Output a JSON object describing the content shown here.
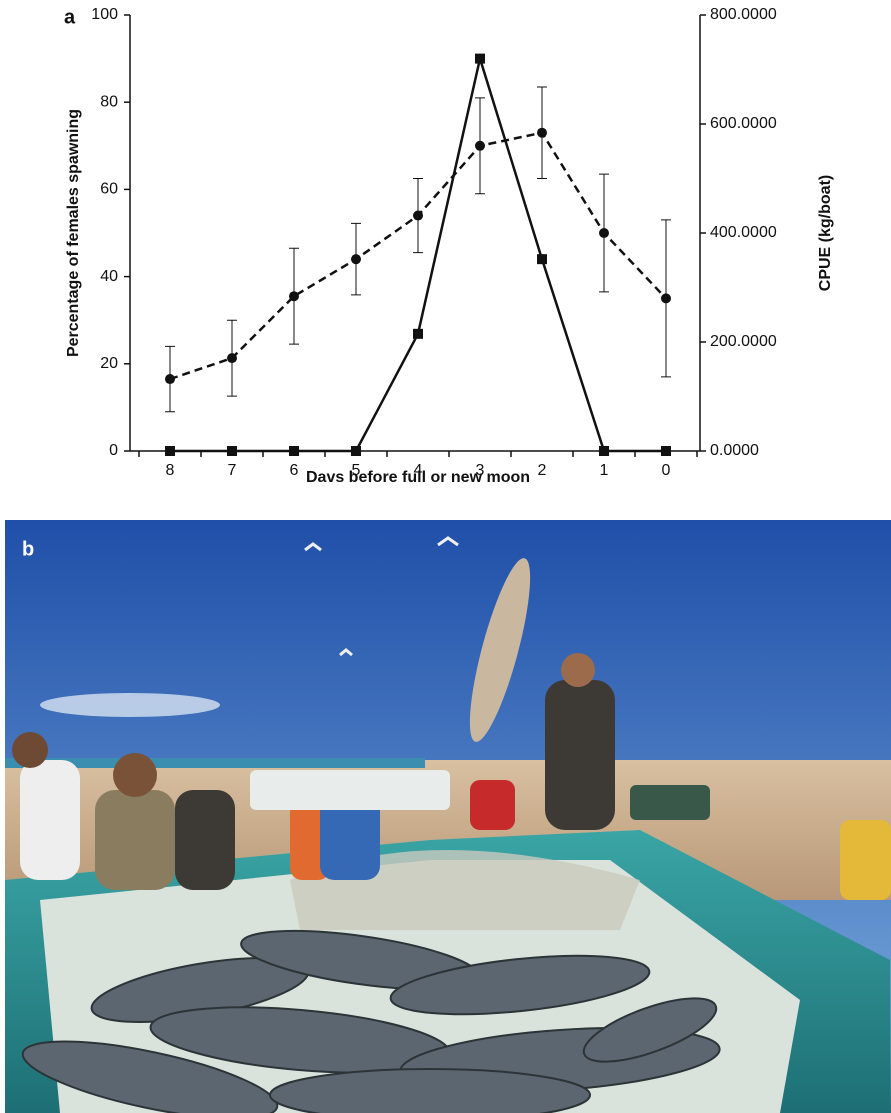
{
  "panel_a": "a",
  "panel_b": "b",
  "chart_data": {
    "type": "line",
    "x_label": "Davs before full or new moon",
    "y_label": "Percentage of females spawning",
    "y2_label": "CPUE (kg/boat)",
    "categories": [
      "8",
      "7",
      "6",
      "5",
      "4",
      "3",
      "2",
      "1",
      "0"
    ],
    "ylim": [
      0,
      100
    ],
    "yticks": [
      0,
      20,
      40,
      60,
      80,
      100
    ],
    "y2lim": [
      0,
      800
    ],
    "y2ticks": [
      {
        "value": 0,
        "label": "0.0000"
      },
      {
        "value": 200,
        "label": "200.0000"
      },
      {
        "value": 400,
        "label": "400.0000"
      },
      {
        "value": 600,
        "label": "600.0000"
      },
      {
        "value": 800,
        "label": "800.0000"
      }
    ],
    "series": [
      {
        "color": "#111111",
        "line_style": "dashed",
        "marker": "circle",
        "values": [
          16.5,
          21.3,
          35.5,
          44,
          54,
          70,
          73,
          50,
          35
        ],
        "errors": [
          7.5,
          8.7,
          11,
          8.2,
          8.5,
          11,
          10.5,
          13.5,
          18
        ]
      },
      {
        "color": "#111111",
        "line_style": "solid",
        "marker": "square",
        "axis": "y2",
        "values": [
          0,
          0,
          0,
          0,
          215,
          720,
          352,
          0,
          0
        ]
      }
    ]
  }
}
